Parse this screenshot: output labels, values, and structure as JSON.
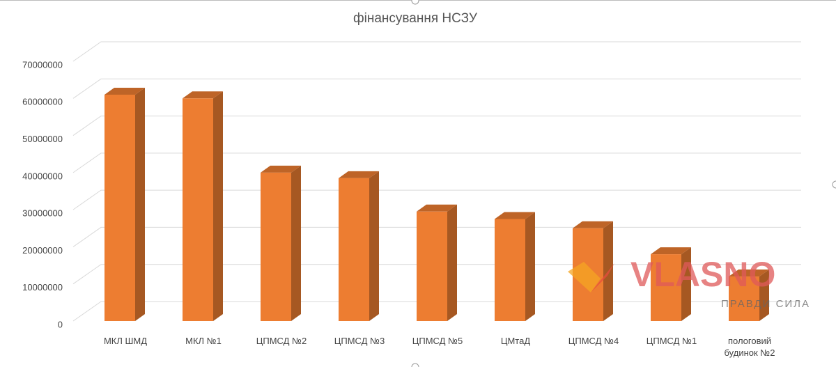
{
  "chart_data": {
    "type": "bar3d",
    "title": "фінансування НСЗУ",
    "categories": [
      "МКЛ ШМД",
      "МКЛ №1",
      "ЦПМСД №2",
      "ЦПМСД №3",
      "ЦПМСД №5",
      "ЦМтаД",
      "ЦПМСД №4",
      "ЦПМСД №1",
      "пологовий будинок №2"
    ],
    "values": [
      61000000,
      60000000,
      40000000,
      38500000,
      29500000,
      27500000,
      25000000,
      18000000,
      12000000
    ],
    "color": "#ed7d31",
    "ylim": [
      0,
      70000000
    ],
    "yticks": [
      0,
      10000000,
      20000000,
      30000000,
      40000000,
      50000000,
      60000000,
      70000000
    ],
    "grid": true,
    "watermark": {
      "brand": "VLASNO",
      "slogan": "ПРАВДИ СИЛА"
    }
  }
}
